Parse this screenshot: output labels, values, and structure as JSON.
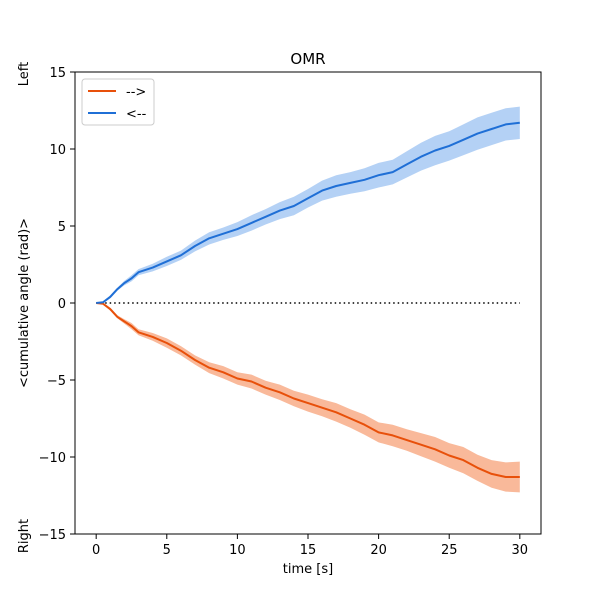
{
  "chart_data": {
    "type": "line",
    "title": "OMR",
    "xlabel": "time [s]",
    "ylabel": "<cumulative angle (rad)>",
    "ylabel_top": "Left",
    "ylabel_bottom": "Right",
    "xlim": [
      -1.5,
      31.5
    ],
    "ylim": [
      -15,
      15
    ],
    "xticks": [
      0,
      5,
      10,
      15,
      20,
      25,
      30
    ],
    "yticks": [
      -15,
      -10,
      -5,
      0,
      5,
      10,
      15
    ],
    "grid": false,
    "legend_position": "top-left",
    "reference_line": {
      "y": 0,
      "x_range": [
        0,
        30
      ],
      "style": "dotted",
      "color": "#000000"
    },
    "series": [
      {
        "name": "-->",
        "color": "#e8500a",
        "band_color": "#f9b99a",
        "x": [
          0,
          0.5,
          1,
          1.5,
          2,
          2.5,
          3,
          4,
          5,
          6,
          7,
          8,
          9,
          10,
          11,
          12,
          13,
          14,
          15,
          16,
          17,
          18,
          19,
          20,
          21,
          22,
          23,
          24,
          25,
          26,
          27,
          28,
          29,
          30
        ],
        "y": [
          0,
          -0.05,
          -0.4,
          -0.9,
          -1.2,
          -1.5,
          -1.9,
          -2.2,
          -2.6,
          -3.1,
          -3.7,
          -4.2,
          -4.5,
          -4.9,
          -5.1,
          -5.5,
          -5.8,
          -6.2,
          -6.5,
          -6.8,
          -7.1,
          -7.5,
          -7.9,
          -8.4,
          -8.6,
          -8.9,
          -9.2,
          -9.5,
          -9.9,
          -10.2,
          -10.7,
          -11.1,
          -11.3,
          -11.3
        ],
        "lower": [
          0,
          -0.1,
          -0.5,
          -1.0,
          -1.35,
          -1.7,
          -2.1,
          -2.45,
          -2.9,
          -3.4,
          -4.0,
          -4.55,
          -4.9,
          -5.3,
          -5.55,
          -5.95,
          -6.3,
          -6.7,
          -7.05,
          -7.35,
          -7.7,
          -8.1,
          -8.55,
          -9.05,
          -9.3,
          -9.6,
          -9.95,
          -10.3,
          -10.7,
          -11.05,
          -11.55,
          -12.0,
          -12.25,
          -12.3
        ],
        "upper": [
          0,
          0.0,
          -0.3,
          -0.8,
          -1.05,
          -1.3,
          -1.7,
          -1.95,
          -2.3,
          -2.8,
          -3.4,
          -3.85,
          -4.1,
          -4.5,
          -4.65,
          -5.05,
          -5.3,
          -5.7,
          -5.95,
          -6.25,
          -6.5,
          -6.9,
          -7.25,
          -7.75,
          -7.9,
          -8.2,
          -8.45,
          -8.7,
          -9.1,
          -9.35,
          -9.85,
          -10.2,
          -10.35,
          -10.3
        ]
      },
      {
        "name": "<--",
        "color": "#1f6fd6",
        "band_color": "#b4d1f5",
        "x": [
          0,
          0.5,
          1,
          1.5,
          2,
          2.5,
          3,
          4,
          5,
          6,
          7,
          8,
          9,
          10,
          11,
          12,
          13,
          14,
          15,
          16,
          17,
          18,
          19,
          20,
          21,
          22,
          23,
          24,
          25,
          26,
          27,
          28,
          29,
          30
        ],
        "y": [
          0,
          0.05,
          0.4,
          0.9,
          1.3,
          1.6,
          2.0,
          2.3,
          2.7,
          3.1,
          3.7,
          4.2,
          4.5,
          4.8,
          5.2,
          5.6,
          6.0,
          6.3,
          6.8,
          7.3,
          7.6,
          7.8,
          8.0,
          8.3,
          8.5,
          9.0,
          9.5,
          9.9,
          10.2,
          10.6,
          11.0,
          11.3,
          11.6,
          11.7
        ],
        "lower": [
          0,
          0.0,
          0.3,
          0.8,
          1.15,
          1.4,
          1.8,
          2.05,
          2.4,
          2.8,
          3.35,
          3.8,
          4.1,
          4.35,
          4.7,
          5.1,
          5.45,
          5.7,
          6.2,
          6.65,
          6.9,
          7.1,
          7.25,
          7.5,
          7.7,
          8.15,
          8.6,
          8.95,
          9.25,
          9.6,
          9.95,
          10.25,
          10.55,
          10.65
        ],
        "upper": [
          0,
          0.1,
          0.5,
          1.0,
          1.45,
          1.8,
          2.2,
          2.55,
          3.0,
          3.4,
          4.05,
          4.6,
          4.9,
          5.25,
          5.7,
          6.1,
          6.55,
          6.9,
          7.4,
          7.95,
          8.3,
          8.5,
          8.75,
          9.1,
          9.3,
          9.85,
          10.4,
          10.85,
          11.15,
          11.6,
          12.05,
          12.35,
          12.65,
          12.75
        ]
      }
    ]
  }
}
